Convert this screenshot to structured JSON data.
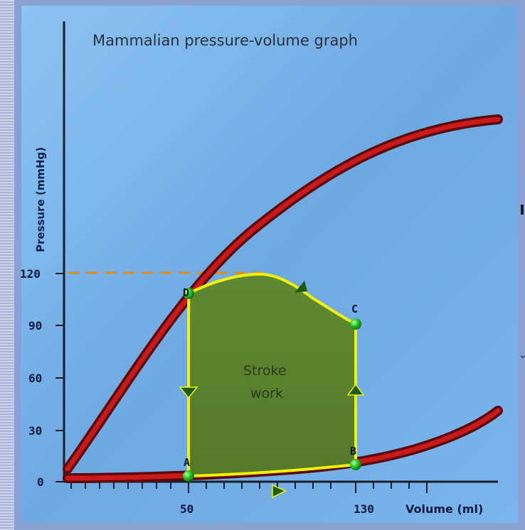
{
  "title": "Mammalian pressure-volume graph",
  "y_axis_label": "Pressure (mmHg)",
  "x_axis_label": "Volume (ml)",
  "y_ticks": [
    "120",
    "90",
    "60",
    "30",
    "0"
  ],
  "x_ticks": [
    "50",
    "130"
  ],
  "points": {
    "a": "A",
    "b": "B",
    "c": "C",
    "d": "D"
  },
  "loop_label_line1": "Stroke",
  "loop_label_line2": "work",
  "colors": {
    "background": "#7fb6ea",
    "curve": "#b31414",
    "loop_fill": "#5d8530",
    "loop_edge": "#f2f200",
    "point": "#22c422",
    "dashed": "#e68a1a"
  }
}
